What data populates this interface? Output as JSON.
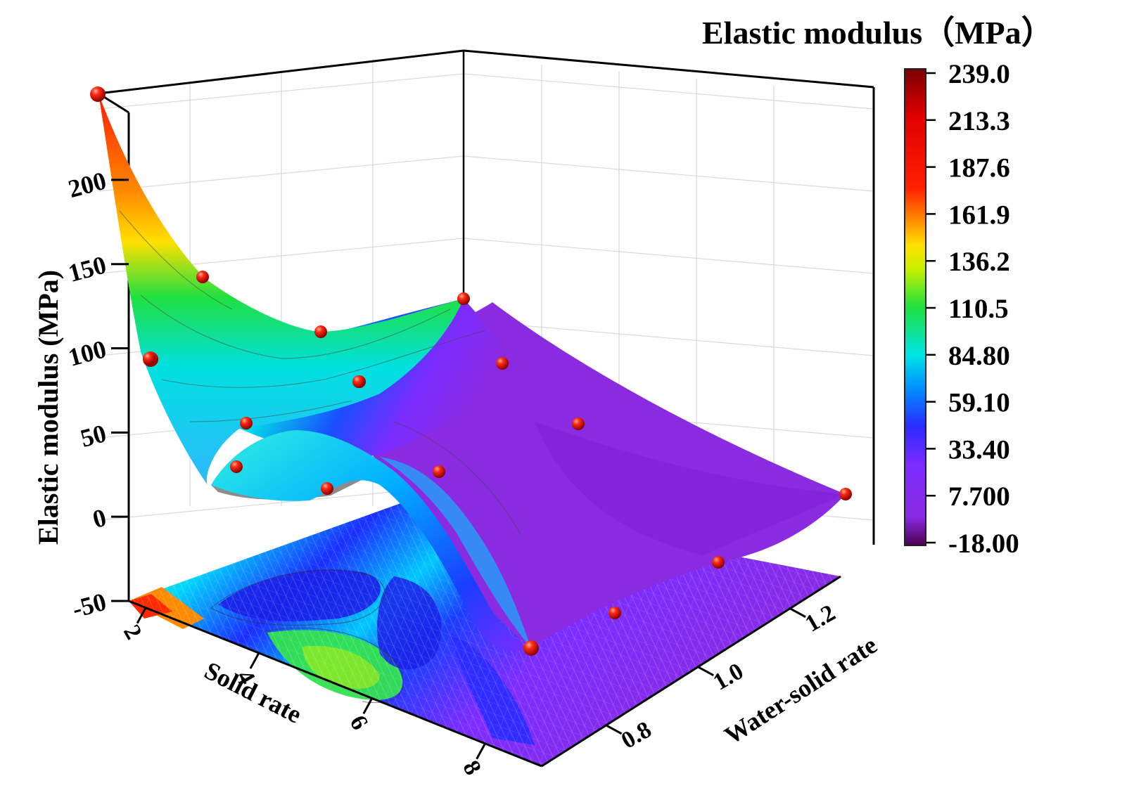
{
  "chart_data": {
    "type": "surface3d",
    "title": "",
    "zlabel": "Elastic modulus (MPa)",
    "xlabel": "Solid rate",
    "ylabel": "Water-solid rate",
    "x_ticks": [
      "2",
      "4",
      "6",
      "8"
    ],
    "y_ticks": [
      "0.8",
      "1.0",
      "1.2"
    ],
    "z_ticks": [
      "-50",
      "0",
      "50",
      "100",
      "150",
      "200"
    ],
    "zlim": [
      -50,
      240
    ],
    "grid": true,
    "colorbar": {
      "title": "Elastic modulus（MPa）",
      "ticks": [
        "239.0",
        "213.3",
        "187.6",
        "161.9",
        "136.2",
        "110.5",
        "84.80",
        "59.10",
        "33.40",
        "7.700",
        "-18.00"
      ],
      "range": [
        -18,
        239
      ]
    },
    "colors": [
      "#4b004f",
      "#7e1dbf",
      "#8a2be2",
      "#2a2bff",
      "#00b4ff",
      "#00e5e5",
      "#20e040",
      "#c8f000",
      "#ffe000",
      "#ff9000",
      "#ff2000",
      "#e00000",
      "#7a0000"
    ],
    "measured_points": [
      {
        "solid_rate": 2,
        "water_solid_rate": 0.8,
        "modulus": 238
      },
      {
        "solid_rate": 2,
        "water_solid_rate": 1.0,
        "modulus": 144
      },
      {
        "solid_rate": 2,
        "water_solid_rate": 1.2,
        "modulus": 101
      },
      {
        "solid_rate": 4,
        "water_solid_rate": 0.8,
        "modulus": 97
      },
      {
        "solid_rate": 4,
        "water_solid_rate": 1.0,
        "modulus": 64
      },
      {
        "solid_rate": 4,
        "water_solid_rate": 1.2,
        "modulus": 45
      },
      {
        "solid_rate": 6,
        "water_solid_rate": 0.8,
        "modulus": 56
      },
      {
        "solid_rate": 6,
        "water_solid_rate": 1.0,
        "modulus": 13
      },
      {
        "solid_rate": 6,
        "water_solid_rate": 1.2,
        "modulus": 6
      },
      {
        "solid_rate": 8,
        "water_solid_rate": 0.8,
        "modulus": 48
      },
      {
        "solid_rate": 8,
        "water_solid_rate": 1.0,
        "modulus": 11
      },
      {
        "solid_rate": 8,
        "water_solid_rate": 1.2,
        "modulus": 9
      },
      {
        "solid_rate": 2,
        "water_solid_rate": 1.3,
        "modulus": 112
      },
      {
        "solid_rate": 9,
        "water_solid_rate": 1.3,
        "modulus": 2
      },
      {
        "solid_rate": 9,
        "water_solid_rate": 0.7,
        "modulus": -45
      },
      {
        "solid_rate": 9,
        "water_solid_rate": 0.9,
        "modulus": -43
      },
      {
        "solid_rate": 9,
        "water_solid_rate": 1.1,
        "modulus": -38
      },
      {
        "solid_rate": 5,
        "water_solid_rate": 1.3,
        "modulus": 30
      }
    ]
  }
}
